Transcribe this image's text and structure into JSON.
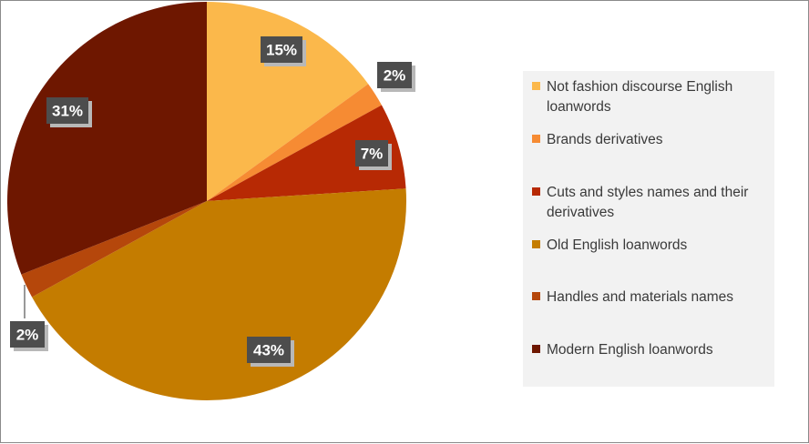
{
  "chart_data": {
    "type": "pie",
    "slices": [
      {
        "label": "Not fashion discourse English loanwords",
        "value": 15,
        "display": "15%",
        "color": "#fbb84b"
      },
      {
        "label": "Brands derivatives",
        "value": 2,
        "display": "2%",
        "color": "#f68b33"
      },
      {
        "label": "Cuts and styles names and their derivatives",
        "value": 7,
        "display": "7%",
        "color": "#b72904"
      },
      {
        "label": "Old English loanwords",
        "value": 43,
        "display": "43%",
        "color": "#c47c00"
      },
      {
        "label": "Handles and materials names",
        "value": 2,
        "display": "2%",
        "color": "#b5470b"
      },
      {
        "label": "Modern English loanwords",
        "value": 31,
        "display": "31%",
        "color": "#6e1700"
      }
    ],
    "legend_position": "right",
    "label_style": "dark boxes with white bold text"
  },
  "legend": {
    "items": [
      {
        "label": "Not fashion discourse English loanwords",
        "color": "#fbb84b"
      },
      {
        "label": "Brands derivatives",
        "color": "#f68b33"
      },
      {
        "label": "Cuts and styles names and their derivatives",
        "color": "#b72904"
      },
      {
        "label": "Old English loanwords",
        "color": "#c47c00"
      },
      {
        "label": "Handles and materials names",
        "color": "#b5470b"
      },
      {
        "label": "Modern English loanwords",
        "color": "#6e1700"
      }
    ]
  },
  "colors": {
    "label_box": "#4d4d4d",
    "label_shadow": "#b8b8b8",
    "legend_bg": "#f2f2f2",
    "frame_border": "#8a8a8a"
  }
}
